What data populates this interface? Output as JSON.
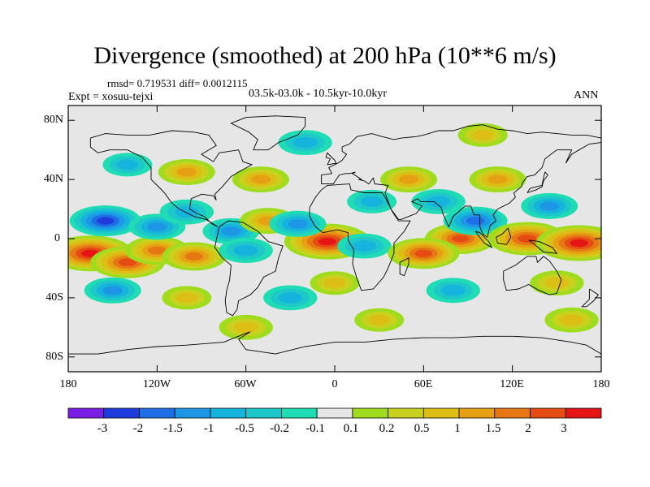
{
  "title": "Divergence (smoothed) at 200 hPa (10**6 m/s)",
  "stats": "rmsd= 0.719531  diff= 0.0012115",
  "experiment": "Expt = xosuu-tejxi",
  "period": "03.5k-03.0k - 10.5kyr-10.0kyr",
  "season": "ANN",
  "colors": {
    "land_outline": "#000000",
    "near_zero": "#e6e6e6"
  },
  "axes": {
    "y_ticks": [
      {
        "label": "80N",
        "lat": 80
      },
      {
        "label": "40N",
        "lat": 40
      },
      {
        "label": "0",
        "lat": 0
      },
      {
        "label": "40S",
        "lat": -40
      },
      {
        "label": "80S",
        "lat": -80
      }
    ],
    "x_ticks": [
      {
        "label": "180",
        "lon": -180
      },
      {
        "label": "120W",
        "lon": -120
      },
      {
        "label": "60W",
        "lon": -60
      },
      {
        "label": "0",
        "lon": 0
      },
      {
        "label": "60E",
        "lon": 60
      },
      {
        "label": "120E",
        "lon": 120
      },
      {
        "label": "180",
        "lon": 180
      }
    ]
  },
  "colorbar": {
    "colors": [
      "#7a1ee6",
      "#1e3cdc",
      "#1e6ee6",
      "#1e96e6",
      "#14b4dc",
      "#1ec8c8",
      "#1edcb4",
      "#e6e6e6",
      "#a0dc1e",
      "#c8d21e",
      "#dcbe14",
      "#e6a014",
      "#e67814",
      "#e64b14",
      "#e61414"
    ],
    "labels": [
      "-3",
      "-2",
      "-1.5",
      "-1",
      "-0.5",
      "-0.2",
      "-0.1",
      "0.1",
      "0.2",
      "0.5",
      "1",
      "1.5",
      "2",
      "3"
    ]
  },
  "chart_data": {
    "type": "heatmap",
    "title": "Divergence (smoothed) at 200 hPa (10**6 m/s)",
    "projection": "cylindrical equidistant",
    "lon_range": [
      -180,
      180
    ],
    "lat_range": [
      -90,
      90
    ],
    "contour_levels": [
      -3,
      -2,
      -1.5,
      -1,
      -0.5,
      -0.2,
      -0.1,
      0.1,
      0.2,
      0.5,
      1,
      1.5,
      2,
      3
    ],
    "background_value": 0,
    "features": [
      {
        "lon": -165,
        "lat": -10,
        "value": 3
      },
      {
        "lon": -140,
        "lat": -16,
        "value": 2.2
      },
      {
        "lon": -120,
        "lat": -8,
        "value": 1.5
      },
      {
        "lon": -95,
        "lat": -12,
        "value": 1.5
      },
      {
        "lon": -155,
        "lat": 12,
        "value": -2
      },
      {
        "lon": -120,
        "lat": 8,
        "value": -1
      },
      {
        "lon": -100,
        "lat": 18,
        "value": -0.8
      },
      {
        "lon": -70,
        "lat": 5,
        "value": -1
      },
      {
        "lon": -60,
        "lat": -8,
        "value": -0.8
      },
      {
        "lon": -45,
        "lat": 12,
        "value": 1
      },
      {
        "lon": -50,
        "lat": 40,
        "value": 1
      },
      {
        "lon": -100,
        "lat": 45,
        "value": 1
      },
      {
        "lon": -140,
        "lat": 50,
        "value": -0.5
      },
      {
        "lon": -5,
        "lat": -2,
        "value": 3
      },
      {
        "lon": 20,
        "lat": -5,
        "value": -0.8
      },
      {
        "lon": -25,
        "lat": 10,
        "value": -1
      },
      {
        "lon": 25,
        "lat": 25,
        "value": -0.5
      },
      {
        "lon": 50,
        "lat": 40,
        "value": 1
      },
      {
        "lon": 70,
        "lat": 25,
        "value": -0.8
      },
      {
        "lon": 85,
        "lat": 0,
        "value": 2
      },
      {
        "lon": 60,
        "lat": -10,
        "value": 2
      },
      {
        "lon": 95,
        "lat": 12,
        "value": -1.5
      },
      {
        "lon": 110,
        "lat": 40,
        "value": 1
      },
      {
        "lon": 145,
        "lat": 22,
        "value": -1
      },
      {
        "lon": 130,
        "lat": 0,
        "value": 2.5
      },
      {
        "lon": 165,
        "lat": -3,
        "value": 3
      },
      {
        "lon": 150,
        "lat": -30,
        "value": 0.8
      },
      {
        "lon": 80,
        "lat": -35,
        "value": -0.8
      },
      {
        "lon": 0,
        "lat": -30,
        "value": 0.5
      },
      {
        "lon": -30,
        "lat": -40,
        "value": -0.8
      },
      {
        "lon": -150,
        "lat": -35,
        "value": -1
      },
      {
        "lon": -100,
        "lat": -40,
        "value": 0.5
      },
      {
        "lon": -60,
        "lat": -60,
        "value": 0.8
      },
      {
        "lon": 30,
        "lat": -55,
        "value": 0.5
      },
      {
        "lon": 160,
        "lat": -55,
        "value": 0.8
      },
      {
        "lon": -20,
        "lat": 65,
        "value": -0.8
      },
      {
        "lon": 100,
        "lat": 70,
        "value": 0.5
      }
    ]
  }
}
